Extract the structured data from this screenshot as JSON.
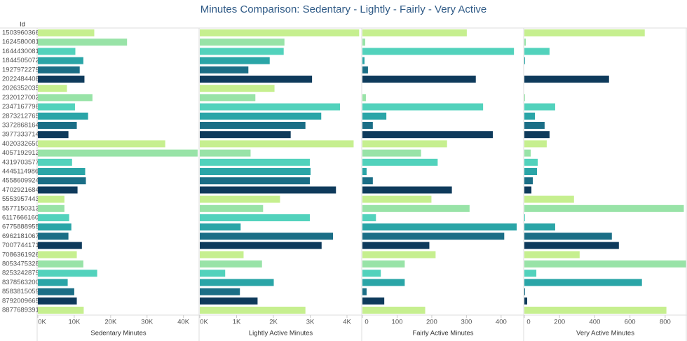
{
  "chart_data": {
    "type": "bar",
    "title": "Minutes Comparison: Sedentary - Lightly - Fairly - Very Active",
    "category_label": "Id",
    "categories": [
      "1503960366",
      "1624580081",
      "1644430081",
      "1844505072",
      "1927972279",
      "2022484408",
      "2026352035",
      "2320127002",
      "2347167796",
      "2873212765",
      "3372868164",
      "3977333714",
      "4020332650",
      "4057192912",
      "4319703577",
      "4445114986",
      "4558609924",
      "4702921684",
      "5553957443",
      "5577150313",
      "6117666160",
      "6775888955",
      "6962181067",
      "7007744171",
      "7086361926",
      "8053475328",
      "8253242879",
      "8378563200",
      "8583815059",
      "8792009665",
      "8877689391"
    ],
    "colors": [
      "#c6ef8f",
      "#98e3a7",
      "#52d2bc",
      "#2aa5a7",
      "#1b6e86",
      "#0e3a5b",
      "#c6ef8f",
      "#98e3a7",
      "#52d2bc",
      "#2aa5a7",
      "#1b6e86",
      "#0e3a5b",
      "#c6ef8f",
      "#98e3a7",
      "#52d2bc",
      "#2aa5a7",
      "#1b6e86",
      "#0e3a5b",
      "#c6ef8f",
      "#98e3a7",
      "#52d2bc",
      "#2aa5a7",
      "#1b6e86",
      "#0e3a5b",
      "#c6ef8f",
      "#98e3a7",
      "#52d2bc",
      "#2aa5a7",
      "#1b6e86",
      "#0e3a5b",
      "#c6ef8f"
    ],
    "panels": [
      {
        "x_label": "Sedentary Minutes",
        "xlim": [
          0,
          44300
        ],
        "xticks": [
          {
            "value": 0,
            "label": "0K"
          },
          {
            "value": 10000,
            "label": "10K"
          },
          {
            "value": 20000,
            "label": "20K"
          },
          {
            "value": 30000,
            "label": "30K"
          },
          {
            "value": 40000,
            "label": "40K"
          }
        ],
        "values": [
          15500,
          24500,
          10300,
          12500,
          11500,
          12800,
          8000,
          15000,
          10200,
          13800,
          10700,
          8400,
          35000,
          43900,
          9400,
          13000,
          13200,
          10900,
          7300,
          7300,
          8600,
          9200,
          8400,
          12100,
          10700,
          12500,
          16300,
          8200,
          10000,
          10700,
          12600
        ]
      },
      {
        "x_label": "Lightly Active Minutes",
        "xlim": [
          0,
          4400
        ],
        "xticks": [
          {
            "value": 0,
            "label": "0K"
          },
          {
            "value": 1000,
            "label": "1K"
          },
          {
            "value": 2000,
            "label": "2K"
          },
          {
            "value": 3000,
            "label": "3K"
          },
          {
            "value": 4000,
            "label": "4K"
          }
        ],
        "values": [
          4330,
          2300,
          2280,
          1900,
          1320,
          3050,
          2030,
          1510,
          3810,
          3300,
          2870,
          2470,
          4180,
          1380,
          2990,
          3010,
          2990,
          3700,
          2180,
          1720,
          2990,
          1110,
          3620,
          3310,
          1190,
          1690,
          690,
          2010,
          1090,
          1570,
          2870
        ]
      },
      {
        "x_label": "Fairly Active Minutes",
        "xlim": [
          0,
          465
        ],
        "xticks": [
          0,
          100,
          200,
          300,
          400
        ],
        "values": [
          301,
          8,
          437,
          6,
          16,
          327,
          0,
          10,
          348,
          69,
          30,
          376,
          244,
          169,
          217,
          12,
          30,
          258,
          199,
          309,
          39,
          445,
          409,
          193,
          211,
          122,
          53,
          122,
          12,
          63,
          181
        ]
      },
      {
        "x_label": "Very Active Minutes",
        "xlim": [
          0,
          920
        ],
        "xticks": [
          0,
          200,
          400,
          600,
          800
        ],
        "values": [
          684,
          8,
          143,
          4,
          0,
          481,
          0,
          4,
          175,
          60,
          115,
          143,
          127,
          36,
          76,
          72,
          48,
          40,
          282,
          906,
          4,
          175,
          497,
          537,
          314,
          918,
          68,
          668,
          4,
          16,
          807
        ]
      }
    ]
  }
}
